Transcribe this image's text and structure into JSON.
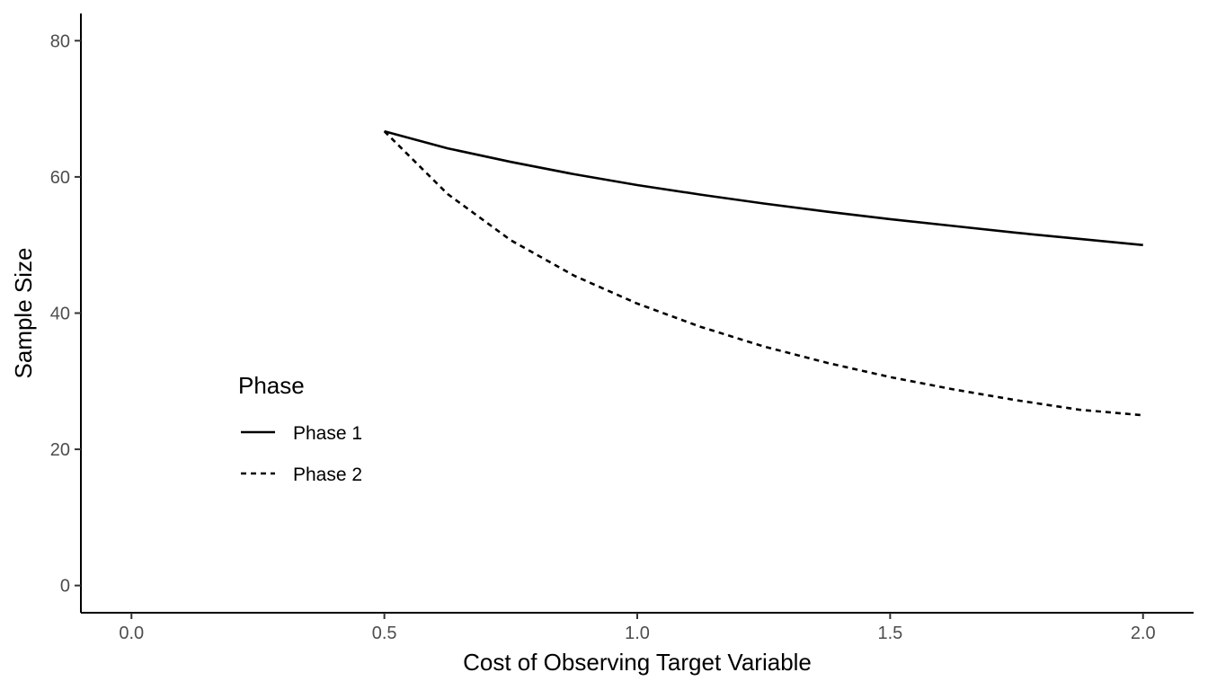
{
  "chart_data": {
    "type": "line",
    "title": "",
    "xlabel": "Cost of Observing Target Variable",
    "ylabel": "Sample Size",
    "xlim": [
      -0.1,
      2.1
    ],
    "ylim": [
      -4,
      84
    ],
    "x_ticks": [
      0,
      0.5,
      1,
      1.5,
      2
    ],
    "x_tick_labels": [
      "0.0",
      "0.5",
      "1.0",
      "1.5",
      "2.0"
    ],
    "y_ticks": [
      0,
      20,
      40,
      60,
      80
    ],
    "y_tick_labels": [
      "0",
      "20",
      "40",
      "60",
      "80"
    ],
    "grid": false,
    "legend": {
      "title": "Phase",
      "position": "left-middle"
    },
    "series": [
      {
        "name": "Phase 1",
        "linestyle": "solid",
        "color": "#000000",
        "x": [
          0.5,
          0.625,
          0.75,
          0.875,
          1.0,
          1.125,
          1.25,
          1.375,
          1.5,
          1.625,
          1.75,
          1.875,
          2.0
        ],
        "values": [
          66.7,
          64.2,
          62.2,
          60.4,
          58.8,
          57.4,
          56.1,
          54.9,
          53.8,
          52.8,
          51.8,
          50.9,
          50.0
        ]
      },
      {
        "name": "Phase 2",
        "linestyle": "dashed",
        "color": "#000000",
        "x": [
          0.5,
          0.625,
          0.75,
          0.875,
          1.0,
          1.125,
          1.25,
          1.375,
          1.5,
          1.625,
          1.75,
          1.875,
          2.0
        ],
        "values": [
          66.7,
          57.5,
          50.7,
          45.5,
          41.4,
          38.0,
          35.1,
          32.7,
          30.6,
          28.8,
          27.2,
          25.8,
          25.0
        ]
      }
    ]
  }
}
